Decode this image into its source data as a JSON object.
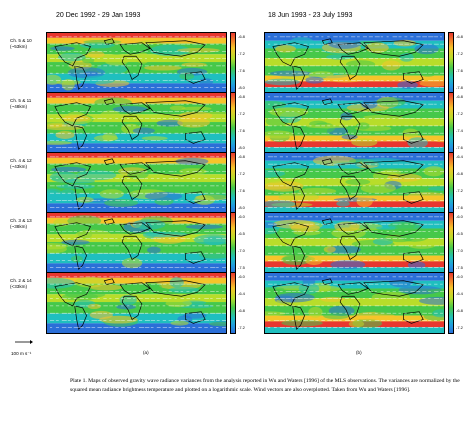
{
  "columns": {
    "left": {
      "title": "20 Dec 1992 - 29 Jan 1993",
      "label": "(a)"
    },
    "right": {
      "title": "18 Jun 1993 - 23 July 1993",
      "label": "(b)"
    }
  },
  "rows": [
    {
      "label_line1": "Ch. 5 & 10",
      "label_line2": "(~53km)",
      "left_ticks": [
        "-6.8",
        "-7.2",
        "-7.6",
        "-8.0"
      ],
      "right_ticks": [
        "-6.8",
        "-7.2",
        "-7.6",
        "-7.8"
      ]
    },
    {
      "label_line1": "Ch. 5 & 11",
      "label_line2": "(~48km)",
      "left_ticks": [
        "-6.8",
        "-7.2",
        "-7.6",
        "-8.0"
      ],
      "right_ticks": [
        "-6.8",
        "-7.2",
        "-7.4",
        "-7.6"
      ]
    },
    {
      "label_line1": "Ch. 4 & 12",
      "label_line2": "(~43km)",
      "left_ticks": [
        "-6.8",
        "-7.2",
        "-7.6",
        "-8.0"
      ],
      "right_ticks": [
        "-6.4",
        "-6.8",
        "-7.2",
        "-7.6"
      ]
    },
    {
      "label_line1": "Ch. 3 & 13",
      "label_line2": "(~38km)",
      "left_ticks": [
        "-6.0",
        "-6.5",
        "-7.0",
        "-7.5"
      ],
      "right_ticks": [
        "-6.0",
        "-6.5",
        "-7.0",
        "-7.5"
      ]
    },
    {
      "label_line1": "Ch. 2 & 14",
      "label_line2": "(<33km)",
      "left_ticks": [
        "-6.0",
        "-6.4",
        "-6.8",
        "-7.2"
      ],
      "right_ticks": [
        "-6.0",
        "-6.4",
        "-6.8",
        "-7.2"
      ]
    }
  ],
  "reference_vector": {
    "label": "100 m s⁻¹"
  },
  "caption": "Plate 1. Maps of observed gravity wave radiance variances from the analysis reported in Wu and Waters [1996] of the MLS observations. The variances are normalized by the squared mean radiance brightness temperature and plotted on a logarithmic scale. Wind vectors are also overplotted. Taken from Wu and Waters [1996].",
  "colors": {
    "high": "#e8372f",
    "mid_high": "#f5c52a",
    "mid": "#46c84a",
    "mid_low": "#1fbfbf",
    "low": "#2b6fd8"
  }
}
